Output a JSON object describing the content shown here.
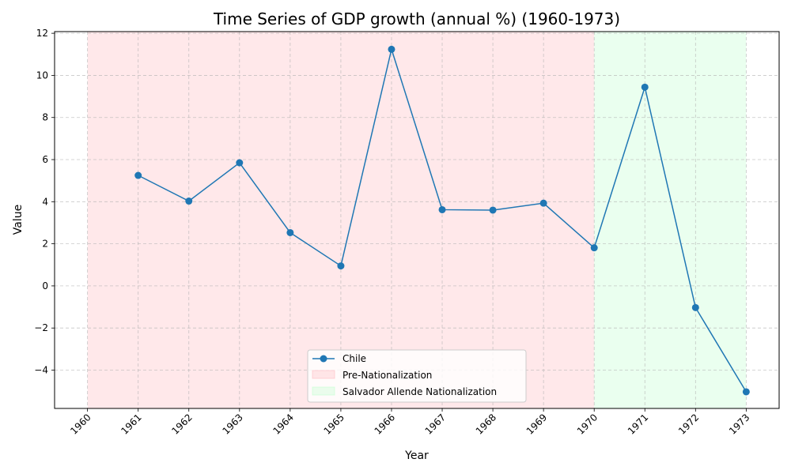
{
  "chart_data": {
    "type": "line",
    "title": "Time Series of GDP growth (annual %) (1960-1973)",
    "xlabel": "Year",
    "ylabel": "Value",
    "x": [
      1961,
      1962,
      1963,
      1964,
      1965,
      1966,
      1967,
      1968,
      1969,
      1970,
      1971,
      1972,
      1973
    ],
    "x_ticks": [
      "1960",
      "1961",
      "1962",
      "1963",
      "1964",
      "1965",
      "1966",
      "1967",
      "1968",
      "1969",
      "1970",
      "1971",
      "1972",
      "1973"
    ],
    "y_ticks": [
      "−4",
      "−2",
      "0",
      "2",
      "4",
      "6",
      "8",
      "10",
      "12"
    ],
    "xlim": [
      1959.35,
      1973.65
    ],
    "ylim": [
      -5.82,
      12.08
    ],
    "grid": true,
    "legend_position": "lower center",
    "series": [
      {
        "name": "Chile",
        "color": "#1f77b4",
        "marker": "circle",
        "values": [
          5.25,
          4.03,
          5.85,
          2.53,
          0.95,
          11.24,
          3.62,
          3.6,
          3.93,
          1.81,
          9.44,
          -1.03,
          -5.03
        ]
      }
    ],
    "periods": [
      {
        "name": "Pre-Nationalization",
        "start": 1960,
        "end": 1970,
        "color": "#ffb3ba"
      },
      {
        "name": "Salvador Allende Nationalization",
        "start": 1970,
        "end": 1973,
        "color": "#baffc9"
      }
    ]
  }
}
